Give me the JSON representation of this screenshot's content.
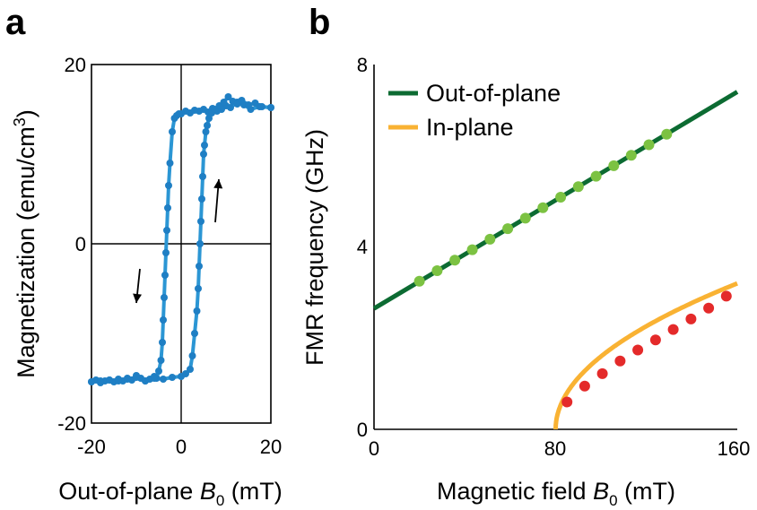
{
  "colors": {
    "loop": "#2b96d4",
    "loop_marker": "#1f7fc4",
    "out_of_plane_line": "#0c6b32",
    "out_of_plane_marker": "#7cc242",
    "in_plane_line": "#f9b233",
    "in_plane_marker": "#e42a2a"
  },
  "chart_data": [
    {
      "panel": "a",
      "type": "line",
      "xlabel_prefix": "Out-of-plane ",
      "xlabel_symbol": "B",
      "xlabel_subscript": "0",
      "xlabel_unit": " (mT)",
      "ylabel": "Magnetization (emu/cm",
      "ylabel_sup": "3",
      "ylabel_end": ")",
      "xlim": [
        -20,
        20
      ],
      "ylim": [
        -20,
        20
      ],
      "xticks": [
        -20,
        0,
        20
      ],
      "yticks": [
        -20,
        0,
        20
      ],
      "grid": false,
      "zero_lines": true,
      "series": [
        {
          "branch": "descending",
          "x": [
            20.0,
            17.5,
            15.5,
            14.0,
            12.5,
            11.0,
            10.0,
            9.0,
            8.0,
            7.0,
            6.0,
            5.0,
            4.0,
            3.0,
            2.0,
            1.0,
            0.0,
            -0.5,
            -1.0,
            -1.5,
            -2.0,
            -2.5,
            -2.8,
            -3.0,
            -3.2,
            -3.4,
            -3.6,
            -3.8,
            -4.0,
            -4.2,
            -4.5,
            -5.0,
            -5.5,
            -6.0,
            -7.0,
            -8.0,
            -9.0,
            -10.0,
            -11.0,
            -12.0,
            -13.0,
            -14.0,
            -15.0,
            -16.0,
            -17.0,
            -18.0,
            -19.0,
            -20.0
          ],
          "y": [
            15.2,
            15.3,
            15.0,
            15.5,
            15.8,
            15.2,
            15.4,
            15.0,
            14.8,
            15.1,
            14.7,
            15.0,
            14.8,
            14.9,
            14.6,
            14.8,
            14.5,
            14.5,
            14.3,
            14.0,
            12.5,
            9.0,
            6.5,
            4.0,
            1.5,
            -1.0,
            -3.5,
            -6.0,
            -8.5,
            -11.0,
            -13.0,
            -14.2,
            -15.0,
            -14.8,
            -15.1,
            -15.3,
            -15.0,
            -14.7,
            -15.2,
            -15.0,
            -15.3,
            -15.1,
            -15.4,
            -15.2,
            -15.3,
            -15.5,
            -15.2,
            -15.4
          ]
        },
        {
          "branch": "ascending",
          "x": [
            -20.0,
            -18.0,
            -16.0,
            -14.0,
            -12.0,
            -10.0,
            -8.0,
            -6.0,
            -4.0,
            -2.0,
            0.0,
            1.0,
            2.0,
            2.5,
            3.0,
            3.5,
            3.8,
            4.0,
            4.2,
            4.4,
            4.6,
            4.8,
            5.0,
            5.2,
            5.5,
            5.8,
            6.2,
            6.8,
            7.5,
            8.5,
            9.5,
            10.5,
            11.5,
            12.5,
            13.5,
            15.0,
            16.5,
            18.0,
            20.0
          ],
          "y": [
            -15.4,
            -15.3,
            -15.2,
            -15.3,
            -15.1,
            -14.9,
            -15.3,
            -15.0,
            -15.1,
            -14.9,
            -14.8,
            -14.5,
            -14.0,
            -12.5,
            -10.0,
            -7.5,
            -5.0,
            -2.5,
            0.0,
            2.5,
            5.0,
            7.5,
            10.0,
            11.0,
            12.5,
            13.2,
            14.0,
            14.6,
            15.0,
            15.4,
            15.8,
            16.4,
            15.9,
            15.6,
            16.0,
            15.5,
            15.7,
            15.3,
            15.2
          ]
        }
      ],
      "arrows": [
        {
          "direction": "down",
          "x": -4.8
        },
        {
          "direction": "up",
          "x": 4.0
        }
      ]
    },
    {
      "panel": "b",
      "type": "line",
      "xlabel_prefix": "Magnetic field ",
      "xlabel_symbol": "B",
      "xlabel_subscript": "0",
      "xlabel_unit": " (mT)",
      "ylabel": "FMR frequency (GHz)",
      "xlim": [
        0,
        160
      ],
      "ylim": [
        0,
        8
      ],
      "xticks": [
        0,
        80,
        160
      ],
      "yticks": [
        0,
        4,
        8
      ],
      "grid": false,
      "legend": "top-left",
      "series": [
        {
          "name": "Out-of-plane",
          "fit": {
            "kind": "linear",
            "y_at_0": 2.65,
            "y_at_160": 7.4
          },
          "x": [
            20,
            27.8,
            35.6,
            43.3,
            51.1,
            58.9,
            66.7,
            74.4,
            82.2,
            90,
            97.8,
            105.6,
            113.3,
            121.1,
            128.9
          ],
          "y": [
            3.25,
            3.48,
            3.71,
            3.94,
            4.17,
            4.4,
            4.63,
            4.86,
            5.09,
            5.32,
            5.55,
            5.78,
            6.01,
            6.24,
            6.47
          ]
        },
        {
          "name": "In-plane",
          "fit": {
            "kind": "sqrt",
            "x0": 80,
            "y_at_160": 3.2
          },
          "x": [
            85,
            92.8,
            100.6,
            108.4,
            116.2,
            124,
            131.8,
            139.6,
            147.4,
            155.2
          ],
          "y": [
            0.6,
            0.95,
            1.22,
            1.5,
            1.74,
            1.96,
            2.19,
            2.42,
            2.66,
            2.92
          ]
        }
      ]
    }
  ]
}
